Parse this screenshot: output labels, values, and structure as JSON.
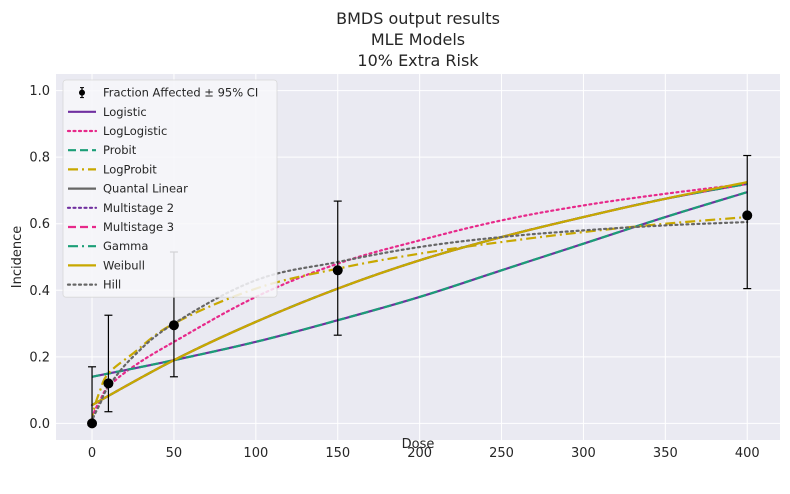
{
  "chart_data": {
    "type": "line",
    "title": [
      "BMDS output results",
      "MLE Models",
      "10% Extra Risk"
    ],
    "xlabel": "Dose",
    "ylabel": "Incidence",
    "xlim": [
      -22,
      420
    ],
    "ylim": [
      -0.05,
      1.05
    ],
    "xticks": [
      0,
      50,
      100,
      150,
      200,
      250,
      300,
      350,
      400
    ],
    "yticks": [
      0.0,
      0.2,
      0.4,
      0.6,
      0.8,
      1.0
    ],
    "xtick_labels": [
      "0",
      "50",
      "100",
      "150",
      "200",
      "250",
      "300",
      "350",
      "400"
    ],
    "ytick_labels": [
      "0.0",
      "0.2",
      "0.4",
      "0.6",
      "0.8",
      "1.0"
    ],
    "grid": true,
    "legend_position": "upper-left",
    "observed": {
      "name": "Fraction Affected ± 95% CI",
      "points": [
        {
          "x": 0,
          "y": 0.0,
          "lower": 0.0,
          "upper": 0.17
        },
        {
          "x": 10,
          "y": 0.12,
          "lower": 0.035,
          "upper": 0.325
        },
        {
          "x": 50,
          "y": 0.295,
          "lower": 0.14,
          "upper": 0.515
        },
        {
          "x": 150,
          "y": 0.46,
          "lower": 0.265,
          "upper": 0.668
        },
        {
          "x": 400,
          "y": 0.625,
          "lower": 0.405,
          "upper": 0.805
        }
      ]
    },
    "series": [
      {
        "name": "Logistic",
        "color": "#7030a0",
        "dash": "solid",
        "x": [
          0,
          50,
          100,
          150,
          200,
          250,
          300,
          350,
          400
        ],
        "y": [
          0.14,
          0.19,
          0.245,
          0.31,
          0.38,
          0.46,
          0.54,
          0.62,
          0.695
        ]
      },
      {
        "name": "LogLogistic",
        "color": "#e7298a",
        "dash": "dotted",
        "x": [
          0,
          1,
          5,
          10,
          25,
          50,
          100,
          150,
          200,
          250,
          300,
          350,
          400
        ],
        "y": [
          0.0,
          0.03,
          0.07,
          0.11,
          0.17,
          0.245,
          0.38,
          0.48,
          0.55,
          0.61,
          0.655,
          0.69,
          0.72
        ]
      },
      {
        "name": "Probit",
        "color": "#1b9e77",
        "dash": "dashed",
        "x": [
          0,
          50,
          100,
          150,
          200,
          250,
          300,
          350,
          400
        ],
        "y": [
          0.14,
          0.19,
          0.245,
          0.31,
          0.38,
          0.46,
          0.54,
          0.62,
          0.695
        ]
      },
      {
        "name": "LogProbit",
        "color": "#c8a800",
        "dash": "dashdot",
        "x": [
          0,
          1,
          5,
          10,
          25,
          50,
          100,
          150,
          200,
          250,
          300,
          350,
          400
        ],
        "y": [
          0.0,
          0.04,
          0.1,
          0.15,
          0.21,
          0.3,
          0.405,
          0.465,
          0.51,
          0.545,
          0.575,
          0.6,
          0.62
        ]
      },
      {
        "name": "Quantal Linear",
        "color": "#666666",
        "dash": "solid",
        "x": [
          0,
          50,
          100,
          150,
          200,
          250,
          300,
          350,
          400
        ],
        "y": [
          0.055,
          0.19,
          0.305,
          0.405,
          0.49,
          0.56,
          0.62,
          0.675,
          0.72
        ]
      },
      {
        "name": "Multistage 2",
        "color": "#7030a0",
        "dash": "dotted",
        "x": [
          0,
          50,
          100,
          150,
          200,
          250,
          300,
          350,
          400
        ],
        "y": [
          0.055,
          0.19,
          0.305,
          0.405,
          0.49,
          0.56,
          0.62,
          0.675,
          0.72
        ]
      },
      {
        "name": "Multistage 3",
        "color": "#e7298a",
        "dash": "dashed",
        "x": [
          0,
          50,
          100,
          150,
          200,
          250,
          300,
          350,
          400
        ],
        "y": [
          0.055,
          0.19,
          0.305,
          0.405,
          0.49,
          0.56,
          0.62,
          0.675,
          0.72
        ]
      },
      {
        "name": "Gamma",
        "color": "#1b9e77",
        "dash": "dashdot",
        "x": [
          0,
          50,
          100,
          150,
          200,
          250,
          300,
          350,
          400
        ],
        "y": [
          0.055,
          0.19,
          0.305,
          0.405,
          0.49,
          0.56,
          0.62,
          0.675,
          0.72
        ]
      },
      {
        "name": "Weibull",
        "color": "#c8a800",
        "dash": "solid",
        "x": [
          0,
          50,
          100,
          150,
          200,
          250,
          300,
          350,
          400
        ],
        "y": [
          0.055,
          0.19,
          0.305,
          0.405,
          0.49,
          0.56,
          0.62,
          0.675,
          0.725
        ]
      },
      {
        "name": "Hill",
        "color": "#666666",
        "dash": "dotted",
        "x": [
          0,
          1,
          5,
          10,
          25,
          50,
          100,
          150,
          200,
          250,
          300,
          350,
          400
        ],
        "y": [
          0.0,
          0.02,
          0.06,
          0.11,
          0.2,
          0.3,
          0.43,
          0.485,
          0.53,
          0.56,
          0.58,
          0.595,
          0.605
        ]
      }
    ]
  }
}
